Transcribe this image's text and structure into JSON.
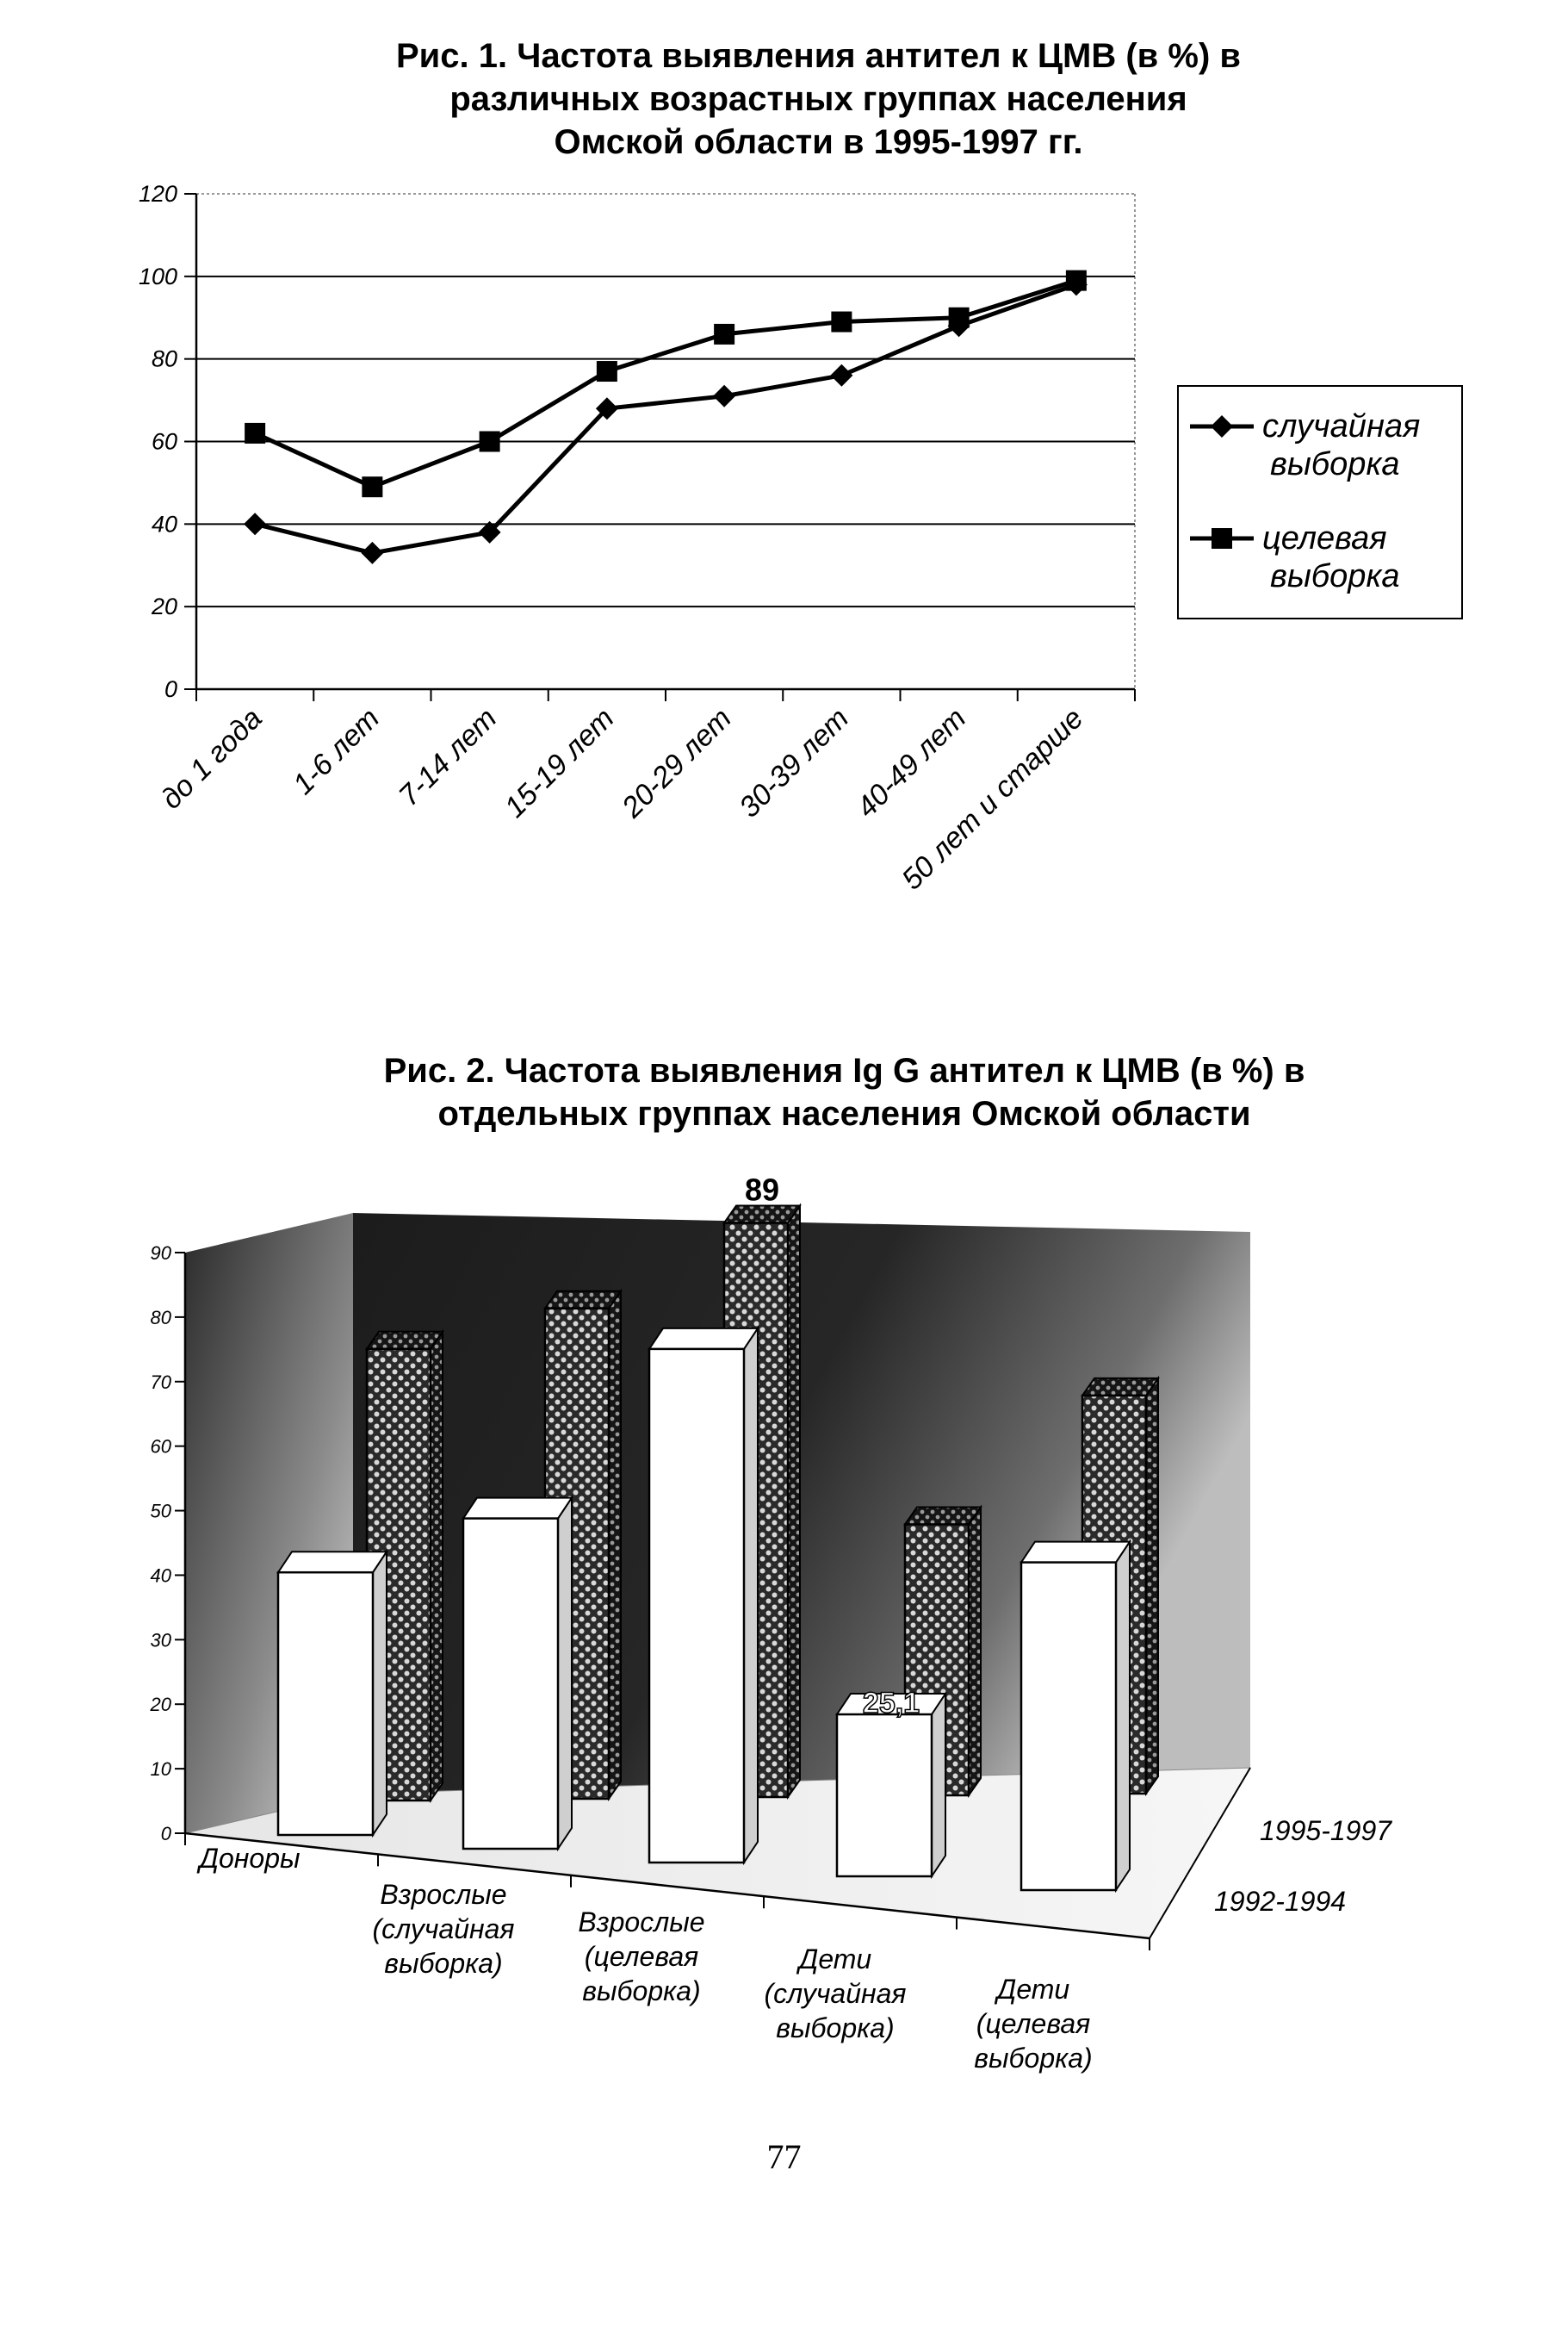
{
  "page_number": "77",
  "chart_data": [
    {
      "type": "line",
      "title_lines": [
        "Рис. 1. Частота выявления антител к ЦМВ (в %) в",
        "различных возрастных группах населения",
        "Омской области в 1995-1997 гг."
      ],
      "categories": [
        "до 1 года",
        "1-6 лет",
        "7-14 лет",
        "15-19 лет",
        "20-29 лет",
        "30-39 лет",
        "40-49 лет",
        "50 лет и старше"
      ],
      "ylim": [
        0,
        120
      ],
      "yticks": [
        "0",
        "20",
        "40",
        "60",
        "80",
        "100",
        "120"
      ],
      "grid": true,
      "legend_position": "right",
      "series": [
        {
          "name_lines": [
            "случайная",
            "выборка"
          ],
          "marker": "diamond",
          "values": [
            40,
            33,
            38,
            68,
            71,
            76,
            88,
            98
          ]
        },
        {
          "name_lines": [
            "целевая",
            "выборка"
          ],
          "marker": "square",
          "values": [
            62,
            49,
            60,
            77,
            86,
            89,
            90,
            99
          ]
        }
      ]
    },
    {
      "type": "bar",
      "style": "3d",
      "title_lines": [
        "Рис. 2. Частота выявления Ig G антител к ЦМВ (в %)  в",
        "отдельных группах населения Омской области"
      ],
      "categories": [
        [
          "Доноры"
        ],
        [
          "Взрослые",
          "(случайная",
          "выборка)"
        ],
        [
          "Взрослые",
          "(целевая",
          "выборка)"
        ],
        [
          "Дети",
          "(случайная",
          "выборка)"
        ],
        [
          "Дети",
          "(целевая",
          "выборка)"
        ]
      ],
      "ylim": [
        0,
        90
      ],
      "yticks": [
        "0",
        "10",
        "20",
        "30",
        "40",
        "50",
        "60",
        "70",
        "80",
        "90"
      ],
      "series": [
        {
          "name": "1992-1994",
          "fill": "white",
          "values": [
            40.7,
            51.2,
            79.6,
            25.1,
            50.8
          ]
        },
        {
          "name": "1995-1997",
          "fill": "dotted",
          "values": [
            70,
            76,
            89,
            42,
            61.7
          ]
        }
      ],
      "data_labels": {
        "back_row_3": "89",
        "front_row_4": "25,1"
      }
    }
  ]
}
